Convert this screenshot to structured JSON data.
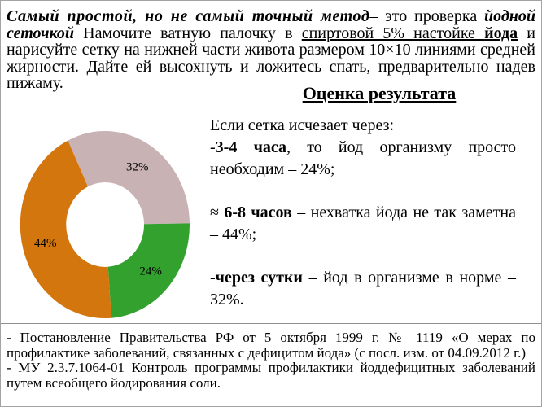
{
  "intro": {
    "segments": [
      {
        "text": "Самый простой, но не самый точный метод",
        "style": "bold-italic"
      },
      {
        "text": "– это проверка ",
        "style": "normal"
      },
      {
        "text": "йодной сеточкой",
        "style": "bold-italic"
      },
      {
        "text": " Намочите ватную палочку в ",
        "style": "normal"
      },
      {
        "text": "спиртовой 5% настойке ",
        "style": "underline"
      },
      {
        "text": "йода",
        "style": "bold-underline"
      },
      {
        "text": " и нарисуйте сетку на нижней части живота размером 10×10 линиями средней жирности. Дайте ей высохнуть и ложитесь спать, предварительно надев пижаму.",
        "style": "normal"
      }
    ]
  },
  "heading": "Оценка результата",
  "results": {
    "lead": "Если сетка исчезает через:",
    "items": [
      {
        "prefix": "-",
        "bold": "3-4 часа",
        "rest": ", то йод организму просто необходим – 24%;"
      },
      {
        "prefix": "≈ ",
        "bold": "6-8 часов",
        "rest": " – нехватка йода не так заметна – 44%;"
      },
      {
        "prefix": "-",
        "bold": "через сутки",
        "rest": " – йод в организме в норме – 32%."
      }
    ]
  },
  "chart_data": {
    "type": "pie",
    "subtype": "donut",
    "start_angle_deg": -26,
    "direction": "clockwise",
    "legend_position": "none",
    "segments": [
      {
        "label": "32%",
        "value": 32,
        "color": "#C9B2B4",
        "meaning": "через сутки – йод в организме в норме"
      },
      {
        "label": "24%",
        "value": 24,
        "color": "#33A12E",
        "meaning": "3-4 часа – йод организму просто необходим"
      },
      {
        "label": "44%",
        "value": 44,
        "color": "#D2760D",
        "meaning": "6-8 часов – нехватка йода не так заметна"
      }
    ]
  },
  "references": [
    "- Постановление Правительства РФ от 5 октября 1999 г. № 1119 «О мерах по профилактике заболеваний, связанных с дефицитом йода» (с посл. изм. от 04.09.2012 г.)",
    "- МУ 2.3.7.1064-01 Контроль программы профилактики йоддефицитных заболеваний путем всеобщего йодирования соли."
  ]
}
